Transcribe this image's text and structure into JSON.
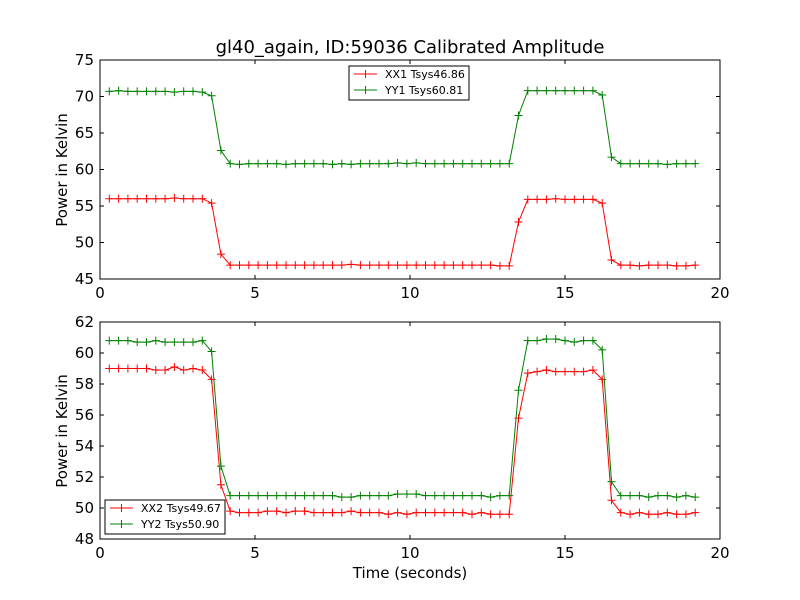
{
  "chart_data": [
    {
      "type": "line",
      "title": "gl40_again, ID:59036 Calibrated Amplitude",
      "xlabel": "",
      "ylabel": "Power in Kelvin",
      "xlim": [
        0,
        20
      ],
      "ylim": [
        45,
        75
      ],
      "xticks": [
        0,
        5,
        10,
        15,
        20
      ],
      "yticks": [
        45,
        50,
        55,
        60,
        65,
        70,
        75
      ],
      "x": [
        0.3,
        0.6,
        0.9,
        1.2,
        1.5,
        1.8,
        2.1,
        2.4,
        2.7,
        3.0,
        3.3,
        3.6,
        3.9,
        4.2,
        4.5,
        4.8,
        5.1,
        5.4,
        5.7,
        6.0,
        6.3,
        6.6,
        6.9,
        7.2,
        7.5,
        7.8,
        8.1,
        8.4,
        8.7,
        9.0,
        9.3,
        9.6,
        9.9,
        10.2,
        10.5,
        10.8,
        11.1,
        11.4,
        11.7,
        12.0,
        12.3,
        12.6,
        12.9,
        13.2,
        13.5,
        13.8,
        14.1,
        14.4,
        14.7,
        15.0,
        15.3,
        15.6,
        15.9,
        16.2,
        16.5,
        16.8,
        17.1,
        17.4,
        17.7,
        18.0,
        18.3,
        18.6,
        18.9,
        19.2
      ],
      "series": [
        {
          "name": "XX1 Tsys46.86",
          "color": "#ff0000",
          "values": [
            56.0,
            56.0,
            56.0,
            56.0,
            56.0,
            56.0,
            56.0,
            56.1,
            56.0,
            56.0,
            56.0,
            55.4,
            48.4,
            46.9,
            46.9,
            46.9,
            46.9,
            46.9,
            46.9,
            46.9,
            46.9,
            46.9,
            46.9,
            46.9,
            46.9,
            46.9,
            47.0,
            46.9,
            46.9,
            46.9,
            46.9,
            46.9,
            46.9,
            46.9,
            46.9,
            46.9,
            46.9,
            46.9,
            46.9,
            46.9,
            46.9,
            46.9,
            46.8,
            46.8,
            52.8,
            55.9,
            55.9,
            55.9,
            56.0,
            55.9,
            55.9,
            55.9,
            55.9,
            55.4,
            47.6,
            46.9,
            46.9,
            46.8,
            46.9,
            46.9,
            46.9,
            46.8,
            46.8,
            46.9
          ]
        },
        {
          "name": "YY1 Tsys60.81",
          "color": "#008000",
          "values": [
            70.7,
            70.8,
            70.7,
            70.7,
            70.7,
            70.7,
            70.7,
            70.6,
            70.7,
            70.7,
            70.6,
            70.1,
            62.6,
            60.8,
            60.7,
            60.8,
            60.8,
            60.8,
            60.8,
            60.7,
            60.8,
            60.8,
            60.8,
            60.8,
            60.7,
            60.8,
            60.7,
            60.8,
            60.8,
            60.8,
            60.8,
            60.9,
            60.8,
            60.9,
            60.8,
            60.8,
            60.8,
            60.8,
            60.8,
            60.8,
            60.8,
            60.8,
            60.8,
            60.8,
            67.4,
            70.8,
            70.8,
            70.8,
            70.8,
            70.8,
            70.8,
            70.8,
            70.8,
            70.2,
            61.7,
            60.8,
            60.8,
            60.8,
            60.8,
            60.8,
            60.7,
            60.8,
            60.8,
            60.8
          ]
        }
      ]
    },
    {
      "type": "line",
      "title": "",
      "xlabel": "Time (seconds)",
      "ylabel": "Power in Kelvin",
      "xlim": [
        0,
        20
      ],
      "ylim": [
        48,
        62
      ],
      "xticks": [
        0,
        5,
        10,
        15,
        20
      ],
      "yticks": [
        48,
        50,
        52,
        54,
        56,
        58,
        60,
        62
      ],
      "x": [
        0.3,
        0.6,
        0.9,
        1.2,
        1.5,
        1.8,
        2.1,
        2.4,
        2.7,
        3.0,
        3.3,
        3.6,
        3.9,
        4.2,
        4.5,
        4.8,
        5.1,
        5.4,
        5.7,
        6.0,
        6.3,
        6.6,
        6.9,
        7.2,
        7.5,
        7.8,
        8.1,
        8.4,
        8.7,
        9.0,
        9.3,
        9.6,
        9.9,
        10.2,
        10.5,
        10.8,
        11.1,
        11.4,
        11.7,
        12.0,
        12.3,
        12.6,
        12.9,
        13.2,
        13.5,
        13.8,
        14.1,
        14.4,
        14.7,
        15.0,
        15.3,
        15.6,
        15.9,
        16.2,
        16.5,
        16.8,
        17.1,
        17.4,
        17.7,
        18.0,
        18.3,
        18.6,
        18.9,
        19.2
      ],
      "series": [
        {
          "name": "XX2 Tsys49.67",
          "color": "#ff0000",
          "values": [
            59.0,
            59.0,
            59.0,
            59.0,
            59.0,
            58.9,
            58.9,
            59.1,
            58.9,
            59.0,
            58.9,
            58.3,
            51.5,
            49.8,
            49.7,
            49.7,
            49.7,
            49.8,
            49.8,
            49.7,
            49.8,
            49.8,
            49.7,
            49.7,
            49.7,
            49.7,
            49.8,
            49.7,
            49.7,
            49.7,
            49.6,
            49.7,
            49.6,
            49.7,
            49.7,
            49.7,
            49.7,
            49.7,
            49.7,
            49.6,
            49.7,
            49.6,
            49.6,
            49.6,
            55.8,
            58.7,
            58.8,
            58.9,
            58.8,
            58.8,
            58.8,
            58.8,
            58.9,
            58.3,
            50.5,
            49.7,
            49.6,
            49.7,
            49.6,
            49.6,
            49.7,
            49.6,
            49.6,
            49.7
          ]
        },
        {
          "name": "YY2 Tsys50.90",
          "color": "#008000",
          "values": [
            60.8,
            60.8,
            60.8,
            60.7,
            60.7,
            60.8,
            60.7,
            60.7,
            60.7,
            60.7,
            60.8,
            60.1,
            52.7,
            50.8,
            50.8,
            50.8,
            50.8,
            50.8,
            50.8,
            50.8,
            50.8,
            50.8,
            50.8,
            50.8,
            50.8,
            50.7,
            50.7,
            50.8,
            50.8,
            50.8,
            50.8,
            50.9,
            50.9,
            50.9,
            50.8,
            50.8,
            50.8,
            50.8,
            50.8,
            50.8,
            50.8,
            50.7,
            50.8,
            50.8,
            57.6,
            60.8,
            60.8,
            60.9,
            60.9,
            60.8,
            60.7,
            60.8,
            60.8,
            60.2,
            51.7,
            50.8,
            50.8,
            50.8,
            50.7,
            50.8,
            50.8,
            50.7,
            50.8,
            50.7
          ]
        }
      ]
    }
  ]
}
